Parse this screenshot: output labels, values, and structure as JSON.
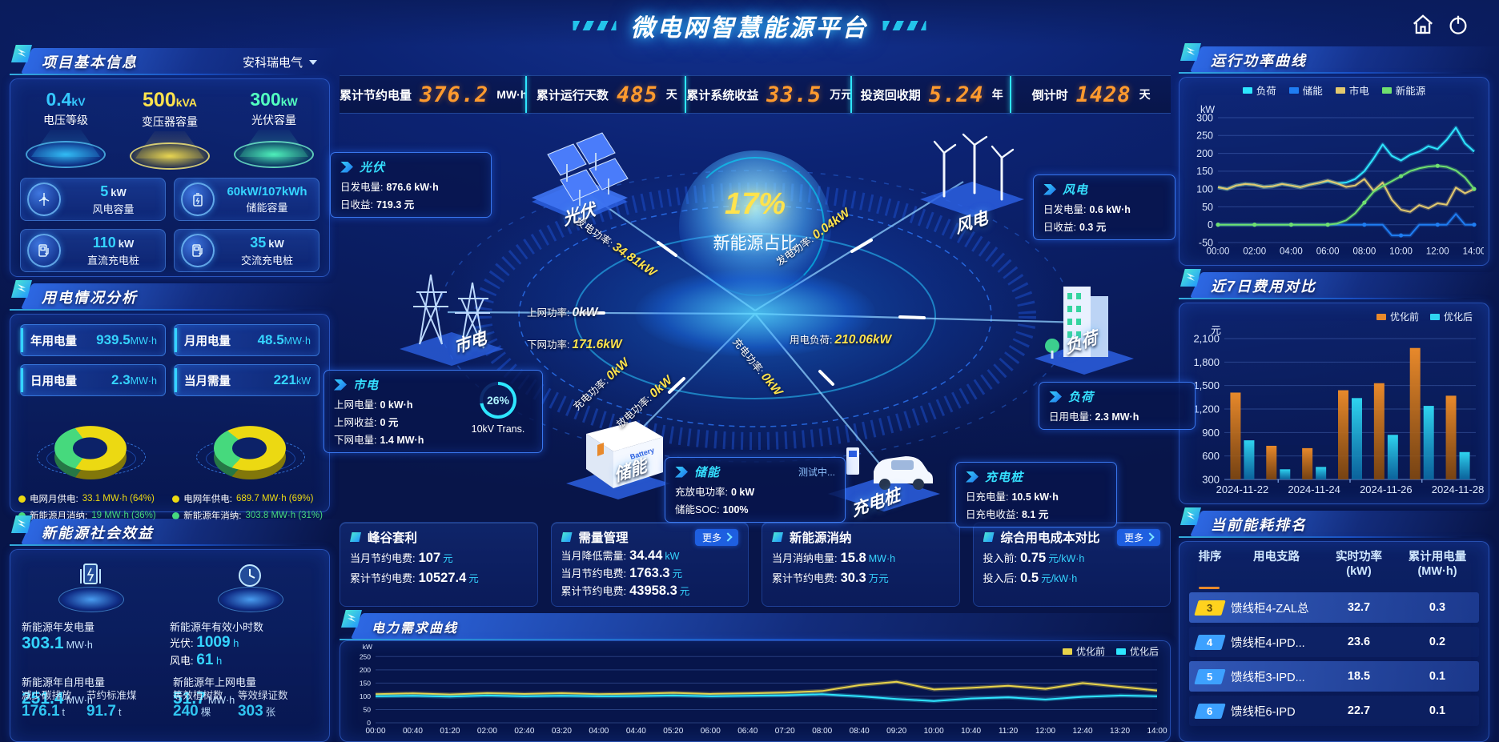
{
  "ui": {
    "more_label": "更多"
  },
  "header": {
    "title": "微电网智慧能源平台"
  },
  "stats_bar": [
    {
      "label": "累计节约电量",
      "value": "376.2",
      "unit": "MW·h"
    },
    {
      "label": "累计运行天数",
      "value": "485",
      "unit": "天"
    },
    {
      "label": "累计系统收益",
      "value": "33.5",
      "unit": "万元"
    },
    {
      "label": "投资回收期",
      "value": "5.24",
      "unit": "年"
    },
    {
      "label": "倒计时",
      "value": "1428",
      "unit": "天"
    }
  ],
  "project_info": {
    "title": "项目基本信息",
    "company": "安科瑞电气",
    "spotlights": [
      {
        "value": "0.4",
        "unit": "kV",
        "label": "电压等级",
        "color": "#35c8ff"
      },
      {
        "value": "500",
        "unit": "kVA",
        "label": "变压器容量",
        "color": "#ffe34d"
      },
      {
        "value": "300",
        "unit": "kW",
        "label": "光伏容量",
        "color": "#53ffc0"
      }
    ],
    "capacities": [
      {
        "value": "5",
        "unit": "kW",
        "label": "风电容量",
        "icon": "wind-turbine-icon"
      },
      {
        "value": "60kW/107kWh",
        "unit": "",
        "label": "储能容量",
        "icon": "battery-icon"
      },
      {
        "value": "110",
        "unit": "kW",
        "label": "直流充电桩",
        "icon": "dc-charger-icon"
      },
      {
        "value": "35",
        "unit": "kW",
        "label": "交流充电桩",
        "icon": "ac-charger-icon"
      }
    ]
  },
  "usage": {
    "title": "用电情况分析",
    "pills": [
      {
        "label": "年用电量",
        "value": "939.5",
        "unit": "MW·h"
      },
      {
        "label": "月用电量",
        "value": "48.5",
        "unit": "MW·h"
      },
      {
        "label": "日用电量",
        "value": "2.3",
        "unit": "MW·h"
      },
      {
        "label": "当月需量",
        "value": "221",
        "unit": "kW"
      }
    ],
    "donuts": [
      {
        "grid_pct": 64,
        "renew_pct": 36,
        "legend": [
          {
            "label": "电网月供电:",
            "value": "33.1 MW·h (64%)"
          },
          {
            "label": "新能源月消纳:",
            "value": "19 MW·h (36%)"
          }
        ]
      },
      {
        "grid_pct": 69,
        "renew_pct": 31,
        "legend": [
          {
            "label": "电网年供电:",
            "value": "689.7 MW·h (69%)"
          },
          {
            "label": "新能源年消纳:",
            "value": "303.8 MW·h (31%)"
          }
        ]
      }
    ]
  },
  "benefits": {
    "title": "新能源社会效益",
    "item1_label": "新能源年发电量",
    "item1_value": "303.1",
    "item1_unit": "MW·h",
    "item2_label": "新能源年有效小时数",
    "item2_sub1_label": "光伏:",
    "item2_sub1_value": "1009",
    "item2_sub1_unit": "h",
    "item2_sub2_label": "风电:",
    "item2_sub2_value": "61",
    "item2_sub2_unit": "h",
    "row2": {
      "a1_label": "新能源年自用电量",
      "a1_value": "251.4",
      "a1_unit": "MW·h",
      "a2_label": "新能源年上网电量",
      "a2_value": "51.7",
      "a2_unit": "MW·h",
      "b1_label": "减少碳排放",
      "b1_value": "176.1",
      "b1_unit": "t",
      "b2_label": "节约标准煤",
      "b2_value": "91.7",
      "b2_unit": "t",
      "b3_label": "等效植树数",
      "b3_value": "240",
      "b3_unit": "棵",
      "b4_label": "等效绿证数",
      "b4_value": "303",
      "b4_unit": "张"
    }
  },
  "diagram": {
    "center_pct": "17%",
    "center_label": "新能源占比",
    "gauge_pct": "26%",
    "gauge_label": "10kV Trans.",
    "nodes": {
      "pv": "光伏",
      "wind": "风电",
      "grid": "市电",
      "load": "负荷",
      "storage": "储能",
      "charger": "充电桩"
    },
    "flows": [
      {
        "label": "发电功率:",
        "value": "34.81kW"
      },
      {
        "label": "发电功率:",
        "value": "0.04kW"
      },
      {
        "label": "上网功率:",
        "value": "0kW"
      },
      {
        "label": "下网功率:",
        "value": "171.6kW"
      },
      {
        "label": "用电负荷:",
        "value": "210.06kW"
      },
      {
        "label": "充电功率:",
        "value": "0kW"
      },
      {
        "label": "放电功率:",
        "value": "0kW"
      },
      {
        "label": "充电功率:",
        "value": "0kW"
      }
    ],
    "boxes": {
      "pv": {
        "title": "光伏",
        "rows": [
          {
            "label": "日发电量:",
            "value": "876.6 kW·h"
          },
          {
            "label": "日收益:",
            "value": "719.3 元"
          }
        ]
      },
      "grid": {
        "title": "市电",
        "rows": [
          {
            "label": "上网电量:",
            "value": "0 kW·h"
          },
          {
            "label": "上网收益:",
            "value": "0 元"
          },
          {
            "label": "下网电量:",
            "value": "1.4 MW·h"
          }
        ]
      },
      "storage": {
        "title": "储能",
        "status": "测试中...",
        "rows": [
          {
            "label": "充放电功率:",
            "value": "0 kW"
          },
          {
            "label": "储能SOC:",
            "value": "100%"
          }
        ]
      },
      "wind": {
        "title": "风电",
        "rows": [
          {
            "label": "日发电量:",
            "value": "0.6 kW·h"
          },
          {
            "label": "日收益:",
            "value": "0.3 元"
          }
        ]
      },
      "load": {
        "title": "负荷",
        "rows": [
          {
            "label": "日用电量:",
            "value": "2.3 MW·h"
          }
        ]
      },
      "charger": {
        "title": "充电桩",
        "rows": [
          {
            "label": "日充电量:",
            "value": "10.5 kW·h"
          },
          {
            "label": "日充电收益:",
            "value": "8.1 元"
          }
        ]
      }
    }
  },
  "cards": [
    {
      "title": "峰谷套利",
      "rows": [
        {
          "label": "当月节约电费:",
          "value": "107",
          "unit": "元"
        },
        {
          "label": "累计节约电费:",
          "value": "10527.4",
          "unit": "元"
        }
      ]
    },
    {
      "title": "需量管理",
      "rows": [
        {
          "label": "当月降低需量:",
          "value": "34.44",
          "unit": "kW"
        },
        {
          "label": "当月节约电费:",
          "value": "1763.3",
          "unit": "元"
        },
        {
          "label": "累计节约电费:",
          "value": "43958.3",
          "unit": "元"
        }
      ]
    },
    {
      "title": "新能源消纳",
      "rows": [
        {
          "label": "当月消纳电量:",
          "value": "15.8",
          "unit": "MW·h"
        },
        {
          "label": "累计节约电费:",
          "value": "30.3",
          "unit": "万元"
        }
      ]
    },
    {
      "title": "综合用电成本对比",
      "rows": [
        {
          "label": "投入前:",
          "value": "0.75",
          "unit": "元/kW·h"
        },
        {
          "label": "投入后:",
          "value": "0.5",
          "unit": "元/kW·h"
        }
      ]
    }
  ],
  "panels": {
    "demand_title": "电力需求曲线",
    "power_title": "运行功率曲线",
    "cost_title": "近7日费用对比",
    "ranking_title": "当前能耗排名"
  },
  "ranking": {
    "headers": {
      "rank": "排序",
      "branch": "用电支路",
      "power1": "实时功率",
      "power2": "(kW)",
      "energy1": "累计用电量",
      "energy2": "(MW·h)"
    },
    "rows": [
      {
        "rank": "3",
        "branch": "馈线柜4-ZAL总",
        "power": "32.7",
        "energy": "0.3"
      },
      {
        "rank": "4",
        "branch": "馈线柜4-IPD...",
        "power": "23.6",
        "energy": "0.2"
      },
      {
        "rank": "5",
        "branch": "馈线柜3-IPD...",
        "power": "18.5",
        "energy": "0.1"
      },
      {
        "rank": "6",
        "branch": "馈线柜6-IPD",
        "power": "22.7",
        "energy": "0.1"
      }
    ]
  },
  "chart_data": [
    {
      "id": "power_curve",
      "type": "line",
      "title": "运行功率曲线",
      "unit": "kW",
      "ylim": [
        -50,
        300
      ],
      "yticks": [
        300,
        250,
        200,
        150,
        100,
        50,
        0,
        -50
      ],
      "xtick_labels": [
        "00:00",
        "02:00",
        "04:00",
        "06:00",
        "08:00",
        "10:00",
        "12:00",
        "14:00"
      ],
      "xtick_idx": [
        0,
        4,
        8,
        12,
        16,
        20,
        24,
        28
      ],
      "legend_position": "top",
      "grid": true,
      "series": [
        {
          "name": "负荷",
          "color": "#2ee6ff",
          "values": [
            105,
            100,
            110,
            114,
            112,
            106,
            108,
            114,
            110,
            105,
            112,
            117,
            122,
            116,
            118,
            128,
            150,
            185,
            225,
            193,
            180,
            196,
            205,
            220,
            212,
            238,
            272,
            228,
            205
          ]
        },
        {
          "name": "储能",
          "color": "#1f7df2",
          "dots": 4,
          "values": [
            0,
            0,
            0,
            0,
            0,
            0,
            0,
            0,
            0,
            0,
            0,
            0,
            0,
            0,
            0,
            0,
            0,
            0,
            0,
            -30,
            -30,
            -30,
            0,
            0,
            0,
            0,
            30,
            0,
            0
          ]
        },
        {
          "name": "市电",
          "color": "#e3c96e",
          "values": [
            105,
            100,
            110,
            114,
            112,
            106,
            108,
            114,
            110,
            105,
            112,
            117,
            124,
            116,
            106,
            110,
            128,
            95,
            118,
            70,
            42,
            36,
            55,
            46,
            60,
            56,
            104,
            88,
            100
          ]
        },
        {
          "name": "新能源",
          "color": "#6fe06f",
          "dots": 4,
          "values": [
            0,
            0,
            0,
            0,
            0,
            0,
            0,
            0,
            0,
            0,
            0,
            0,
            0,
            3,
            12,
            32,
            62,
            92,
            108,
            122,
            136,
            150,
            158,
            163,
            165,
            162,
            152,
            132,
            100
          ]
        }
      ]
    },
    {
      "id": "cost_compare",
      "type": "bar",
      "title": "近7日费用对比",
      "unit": "元",
      "ylim": [
        300,
        2100
      ],
      "yticks": [
        2100,
        1800,
        1500,
        1200,
        900,
        600,
        300
      ],
      "ytick_labels": [
        "2,100",
        "1,800",
        "1,500",
        "1,200",
        "900",
        "600",
        "300"
      ],
      "categories": [
        "2024-11-22",
        "2024-11-23",
        "2024-11-24",
        "2024-11-25",
        "2024-11-26",
        "2024-11-27",
        "2024-11-28"
      ],
      "xtick_idx": [
        0,
        2,
        4,
        6
      ],
      "legend_position": "top-right",
      "grid": true,
      "series": [
        {
          "name": "优化前",
          "color": "#e8892b",
          "color2": "#8a4a08",
          "values": [
            1410,
            730,
            700,
            1440,
            1530,
            1980,
            1370
          ]
        },
        {
          "name": "优化后",
          "color": "#2fd4f0",
          "color2": "#0c6fa8",
          "values": [
            800,
            430,
            460,
            1340,
            870,
            1240,
            650
          ]
        }
      ]
    },
    {
      "id": "demand_curve",
      "type": "line",
      "title": "电力需求曲线",
      "unit": "kW",
      "ylim": [
        0,
        260
      ],
      "yticks": [
        250,
        200,
        150,
        100,
        50,
        0
      ],
      "xtick_labels": [
        "00:00",
        "00:40",
        "01:20",
        "02:00",
        "02:40",
        "03:20",
        "04:00",
        "04:40",
        "05:20",
        "06:00",
        "06:40",
        "07:20",
        "08:00",
        "08:40",
        "09:20",
        "10:00",
        "10:40",
        "11:20",
        "12:00",
        "12:40",
        "13:20",
        "14:00"
      ],
      "xtick_idx": [
        0,
        1,
        2,
        3,
        4,
        5,
        6,
        7,
        8,
        9,
        10,
        11,
        12,
        13,
        14,
        15,
        16,
        17,
        18,
        19,
        20,
        21
      ],
      "legend_position": "top-right",
      "grid": true,
      "series": [
        {
          "name": "优化前",
          "color": "#e8d34a",
          "values": [
            108,
            111,
            107,
            112,
            109,
            112,
            108,
            110,
            113,
            109,
            111,
            114,
            120,
            142,
            155,
            126,
            132,
            140,
            128,
            150,
            136,
            122
          ]
        },
        {
          "name": "优化后",
          "color": "#2ee6ff",
          "values": [
            100,
            102,
            99,
            103,
            100,
            102,
            100,
            101,
            103,
            100,
            102,
            104,
            108,
            100,
            90,
            82,
            92,
            96,
            88,
            98,
            103,
            100
          ]
        }
      ]
    }
  ]
}
